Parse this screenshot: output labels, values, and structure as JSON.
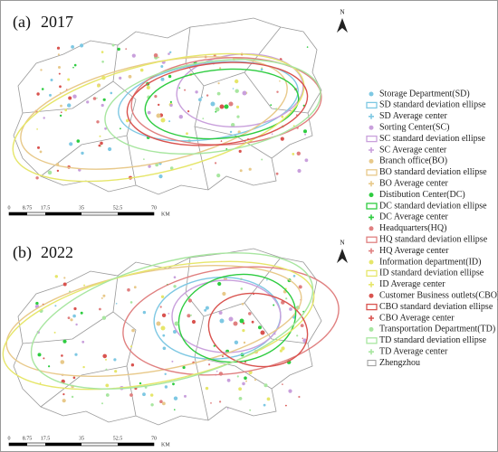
{
  "panels": [
    {
      "label": "(a)",
      "year": "2017",
      "north": "N",
      "scale": [
        "0",
        "8.75",
        "17.5",
        "35",
        "52.5",
        "70"
      ],
      "unit": "KM"
    },
    {
      "label": "(b)",
      "year": "2022",
      "north": "N",
      "scale": [
        "0",
        "8.75",
        "17.5",
        "35",
        "52.5",
        "70"
      ],
      "unit": "KM"
    }
  ],
  "legend": [
    {
      "label": "Storage Department(SD)",
      "color": "#7ec8e3"
    },
    {
      "label": "SD standard deviation ellipse",
      "color": "#7ec8e3"
    },
    {
      "label": "SD Average center",
      "color": "#7ec8e3"
    },
    {
      "label": "Sorting Center(SC)",
      "color": "#c9a0dc"
    },
    {
      "label": "SC standard deviation ellipse",
      "color": "#c9a0dc"
    },
    {
      "label": "SC Average center",
      "color": "#c9a0dc"
    },
    {
      "label": "Branch office(BO)",
      "color": "#e8c98a"
    },
    {
      "label": "BO standard deviation ellipse",
      "color": "#e8c98a"
    },
    {
      "label": "BO Average center",
      "color": "#e8c98a"
    },
    {
      "label": "Distibution Center(DC)",
      "color": "#2ecc40"
    },
    {
      "label": "DC standard deviation ellipse",
      "color": "#2ecc40"
    },
    {
      "label": "DC Average center",
      "color": "#2ecc40"
    },
    {
      "label": "Headquarters(HQ)",
      "color": "#e08080"
    },
    {
      "label": "HQ standard deviation ellipse",
      "color": "#e08080"
    },
    {
      "label": "HQ Average center",
      "color": "#e08080"
    },
    {
      "label": "Information department(ID)",
      "color": "#e6e66a"
    },
    {
      "label": "ID standard deviation ellipse",
      "color": "#e6e66a"
    },
    {
      "label": "ID Average center",
      "color": "#e6e66a"
    },
    {
      "label": "Customer Business outlets(CBO)",
      "color": "#d9534f"
    },
    {
      "label": "CBO standard deviation ellipse",
      "color": "#d9534f"
    },
    {
      "label": "CBO Average center",
      "color": "#d9534f"
    },
    {
      "label": "Transportation Department(TD)",
      "color": "#a8e6a0"
    },
    {
      "label": "TD standard deviation ellipse",
      "color": "#a8e6a0"
    },
    {
      "label": "TD Average center",
      "color": "#a8e6a0"
    },
    {
      "label": "Zhengzhou",
      "color": "#9a9a9a"
    }
  ]
}
